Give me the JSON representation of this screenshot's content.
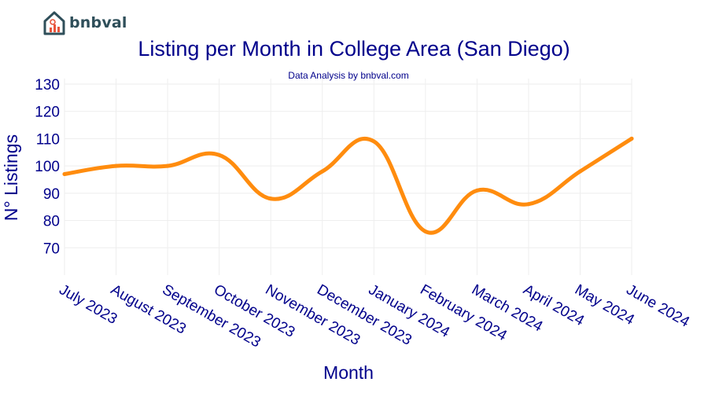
{
  "brand": {
    "name": "bnbval",
    "logo_icon": "house-chart-icon",
    "logo_color": "#2f4f5a",
    "accent": "#e8553c"
  },
  "chart_data": {
    "type": "line",
    "title": "Listing per Month in College Area (San Diego)",
    "subtitle": "Data Analysis by bnbval.com",
    "xlabel": "Month",
    "ylabel": "N° Listings",
    "categories": [
      "July 2023",
      "August 2023",
      "September 2023",
      "October 2023",
      "November 2023",
      "December 2023",
      "January 2024",
      "February 2024",
      "March 2024",
      "April 2024",
      "May 2024",
      "June 2024"
    ],
    "series": [
      {
        "values": [
          97,
          100,
          100,
          104,
          88,
          98,
          109,
          76,
          91,
          86,
          98,
          110
        ],
        "color": "#ff8c0e"
      }
    ],
    "yticks": [
      70,
      80,
      90,
      100,
      110,
      120,
      130
    ],
    "ylim": [
      60,
      132
    ],
    "grid": true,
    "legend": false,
    "text_color": "#00008b"
  }
}
